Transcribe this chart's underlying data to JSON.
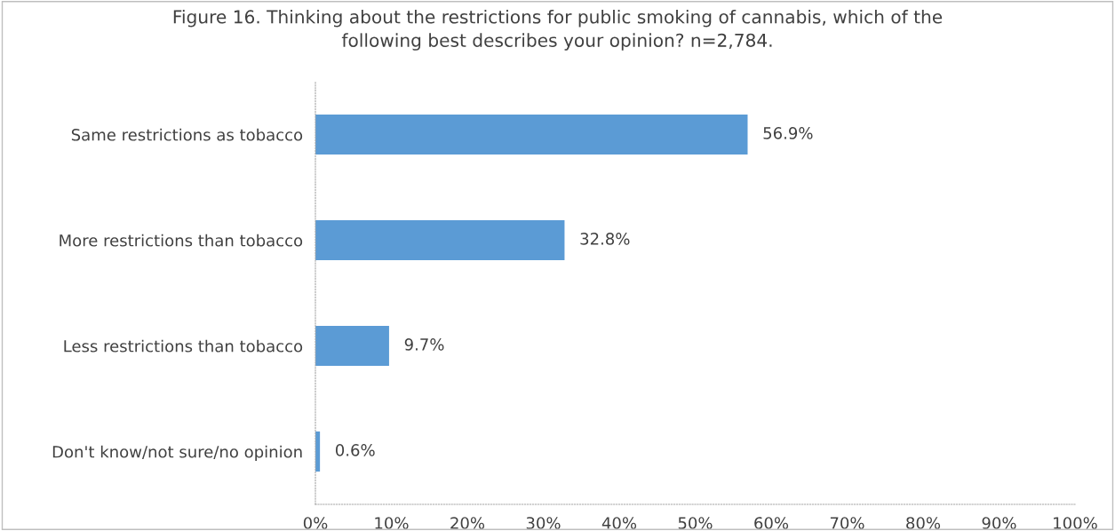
{
  "chart_data": {
    "type": "bar",
    "orientation": "horizontal",
    "title": "Figure 16. Thinking about the restrictions for public smoking of cannabis, which of the\nfollowing best describes your opinion? n=2,784.",
    "categories": [
      "Same restrictions as tobacco",
      "More restrictions than tobacco",
      "Less restrictions than tobacco",
      "Don't know/not sure/no opinion"
    ],
    "values": [
      56.9,
      32.8,
      9.7,
      0.6
    ],
    "value_labels": [
      "56.9%",
      "32.8%",
      "9.7%",
      "0.6%"
    ],
    "color": "#5b9bd5",
    "xlim": [
      0,
      100
    ],
    "xticks": [
      {
        "value": 0,
        "label": "0%"
      },
      {
        "value": 10,
        "label": "10%"
      },
      {
        "value": 20,
        "label": "20%"
      },
      {
        "value": 30,
        "label": "30%"
      },
      {
        "value": 40,
        "label": "40%"
      },
      {
        "value": 50,
        "label": "50%"
      },
      {
        "value": 60,
        "label": "60%"
      },
      {
        "value": 70,
        "label": "70%"
      },
      {
        "value": 80,
        "label": "80%"
      },
      {
        "value": 90,
        "label": "90%"
      },
      {
        "value": 100,
        "label": "100%"
      }
    ],
    "grid": false,
    "legend": false
  }
}
